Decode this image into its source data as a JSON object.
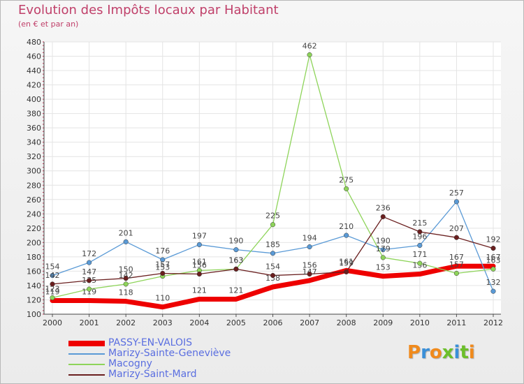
{
  "chart_data": {
    "type": "line",
    "title": "Evolution des Impôts locaux par Habitant",
    "subtitle": "(en € et par an)",
    "xlabel": "",
    "ylabel": "",
    "x": [
      "2000",
      "2001",
      "2002",
      "2003",
      "2004",
      "2005",
      "2006",
      "2007",
      "2008",
      "2009",
      "2010",
      "2011",
      "2012"
    ],
    "ylim": [
      100,
      480
    ],
    "yticks": [
      "100",
      "120",
      "140",
      "160",
      "180",
      "200",
      "220",
      "240",
      "260",
      "280",
      "300",
      "320",
      "340",
      "360",
      "380",
      "400",
      "420",
      "440",
      "460",
      "480"
    ],
    "grid": true,
    "series": [
      {
        "name": "PASSY-EN-VALOIS",
        "color": "#ee0000",
        "emphasis": true,
        "values": [
          119,
          119,
          118,
          110,
          121,
          121,
          138,
          147,
          161,
          153,
          156,
          167,
          167
        ],
        "labels": [
          "119",
          "119",
          "118",
          "110",
          "121",
          "121",
          "138",
          "147",
          "161",
          "153",
          "156",
          "167",
          "167"
        ]
      },
      {
        "name": "Marizy-Sainte-Geneviève",
        "color": "#5a9ad6",
        "values": [
          154,
          172,
          201,
          176,
          197,
          190,
          185,
          194,
          210,
          190,
          196,
          257,
          132
        ],
        "labels": [
          "154",
          "172",
          "201",
          "176",
          "197",
          "190",
          "185",
          "194",
          "210",
          "190",
          "196",
          "257",
          "132"
        ]
      },
      {
        "name": "Macogny",
        "color": "#8ed45a",
        "values": [
          123,
          135,
          142,
          153,
          161,
          163,
          225,
          462,
          275,
          179,
          171,
          157,
          163
        ],
        "labels": [
          "123",
          "135",
          "142",
          "153",
          "161",
          "163",
          "225",
          "462",
          "275",
          "179",
          "171",
          "157",
          "163"
        ]
      },
      {
        "name": "Marizy-Saint-Mard",
        "color": "#6a1f1f",
        "values": [
          142,
          147,
          150,
          157,
          156,
          163,
          154,
          156,
          159,
          236,
          215,
          207,
          192
        ],
        "labels": [
          "142",
          "147",
          "150",
          "157",
          "156",
          "163",
          "154",
          "156",
          "159",
          "236",
          "215",
          "207",
          "192"
        ]
      }
    ]
  },
  "logo": {
    "text": "Proxiti",
    "letters": [
      {
        "ch": "P",
        "color": "#f08a1c"
      },
      {
        "ch": "r",
        "color": "#3a8fd8"
      },
      {
        "ch": "o",
        "color": "#f08a1c"
      },
      {
        "ch": "x",
        "color": "#6cbf2a"
      },
      {
        "ch": "i",
        "color": "#3a8fd8"
      },
      {
        "ch": "t",
        "color": "#6cbf2a"
      },
      {
        "ch": "i",
        "color": "#f08a1c"
      }
    ]
  }
}
